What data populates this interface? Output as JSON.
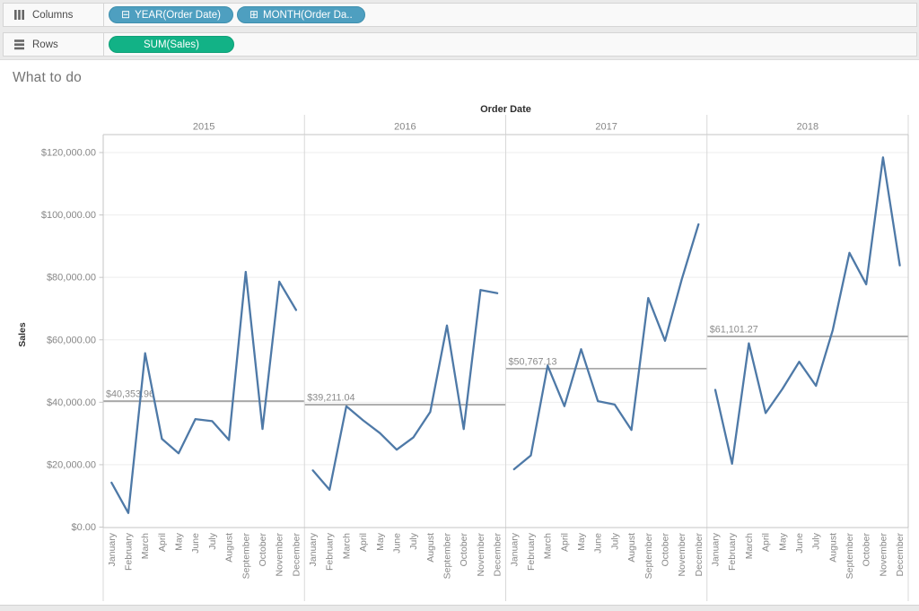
{
  "shelves": {
    "columns": {
      "label": "Columns",
      "pills": [
        {
          "label": "YEAR(Order Date)",
          "icon": "collapse-minus-box",
          "icon_glyph": "⊟"
        },
        {
          "label": "MONTH(Order Da..",
          "icon": "expand-plus-box",
          "icon_glyph": "⊞"
        }
      ]
    },
    "rows": {
      "label": "Rows",
      "pills": [
        {
          "label": "SUM(Sales)"
        }
      ]
    }
  },
  "sheet": {
    "title": "What to do"
  },
  "chart_data": {
    "type": "line",
    "title": "What to do",
    "facet_label": "Order Date",
    "ylabel": "Sales",
    "legend_position": "none",
    "grid": true,
    "ylim": [
      0,
      125800
    ],
    "categories": [
      "January",
      "February",
      "March",
      "April",
      "May",
      "June",
      "July",
      "August",
      "September",
      "October",
      "November",
      "December"
    ],
    "y_ticks": [
      {
        "value": 120000,
        "label": "$120,000.00"
      },
      {
        "value": 100000,
        "label": "$100,000.00"
      },
      {
        "value": 80000,
        "label": "$80,000.00"
      },
      {
        "value": 60000,
        "label": "$60,000.00"
      },
      {
        "value": 40000,
        "label": "$40,000.00"
      },
      {
        "value": 20000,
        "label": "$20,000.00"
      },
      {
        "value": 0,
        "label": "$0.00"
      }
    ],
    "series": [
      {
        "name": "2015",
        "values": [
          14236.9,
          4519.89,
          55691.01,
          28295.35,
          23648.29,
          34595.13,
          33946.39,
          27909.47,
          81777.35,
          31453.39,
          78628.72,
          69545.62
        ],
        "reference_line": {
          "value": 40353.96,
          "label": "$40,353.96"
        }
      },
      {
        "name": "2016",
        "values": [
          18174.08,
          11951.41,
          38726.25,
          34195.21,
          30131.69,
          24797.29,
          28765.33,
          36898.33,
          64595.92,
          31404.92,
          75972.56,
          74919.52
        ],
        "reference_line": {
          "value": 39211.04,
          "label": "$39,211.04"
        }
      },
      {
        "name": "2017",
        "values": [
          18542.49,
          22978.82,
          51715.16,
          38750.04,
          56987.73,
          40344.53,
          39261.96,
          31115.37,
          73410.02,
          59687.75,
          79411.97,
          96999.04
        ],
        "reference_line": {
          "value": 50767.13,
          "label": "$50,767.13"
        }
      },
      {
        "name": "2018",
        "values": [
          43971.37,
          20301.13,
          58872.35,
          36521.54,
          44261.11,
          52981.73,
          45264.42,
          63120.89,
          87866.65,
          77776.92,
          118447.83,
          83829.32
        ],
        "reference_line": {
          "value": 61101.27,
          "label": "$61,101.27"
        }
      }
    ],
    "colors": {
      "line": "#4e79a7",
      "reference_line": "#9c9c9c",
      "reference_label": "#8b8b8b",
      "axis_text": "#878787",
      "header_text": "#2f2f2f",
      "gridline": "#ededed",
      "panel_border": "#d8d8d8",
      "axis_line": "#c6c6c6"
    }
  }
}
